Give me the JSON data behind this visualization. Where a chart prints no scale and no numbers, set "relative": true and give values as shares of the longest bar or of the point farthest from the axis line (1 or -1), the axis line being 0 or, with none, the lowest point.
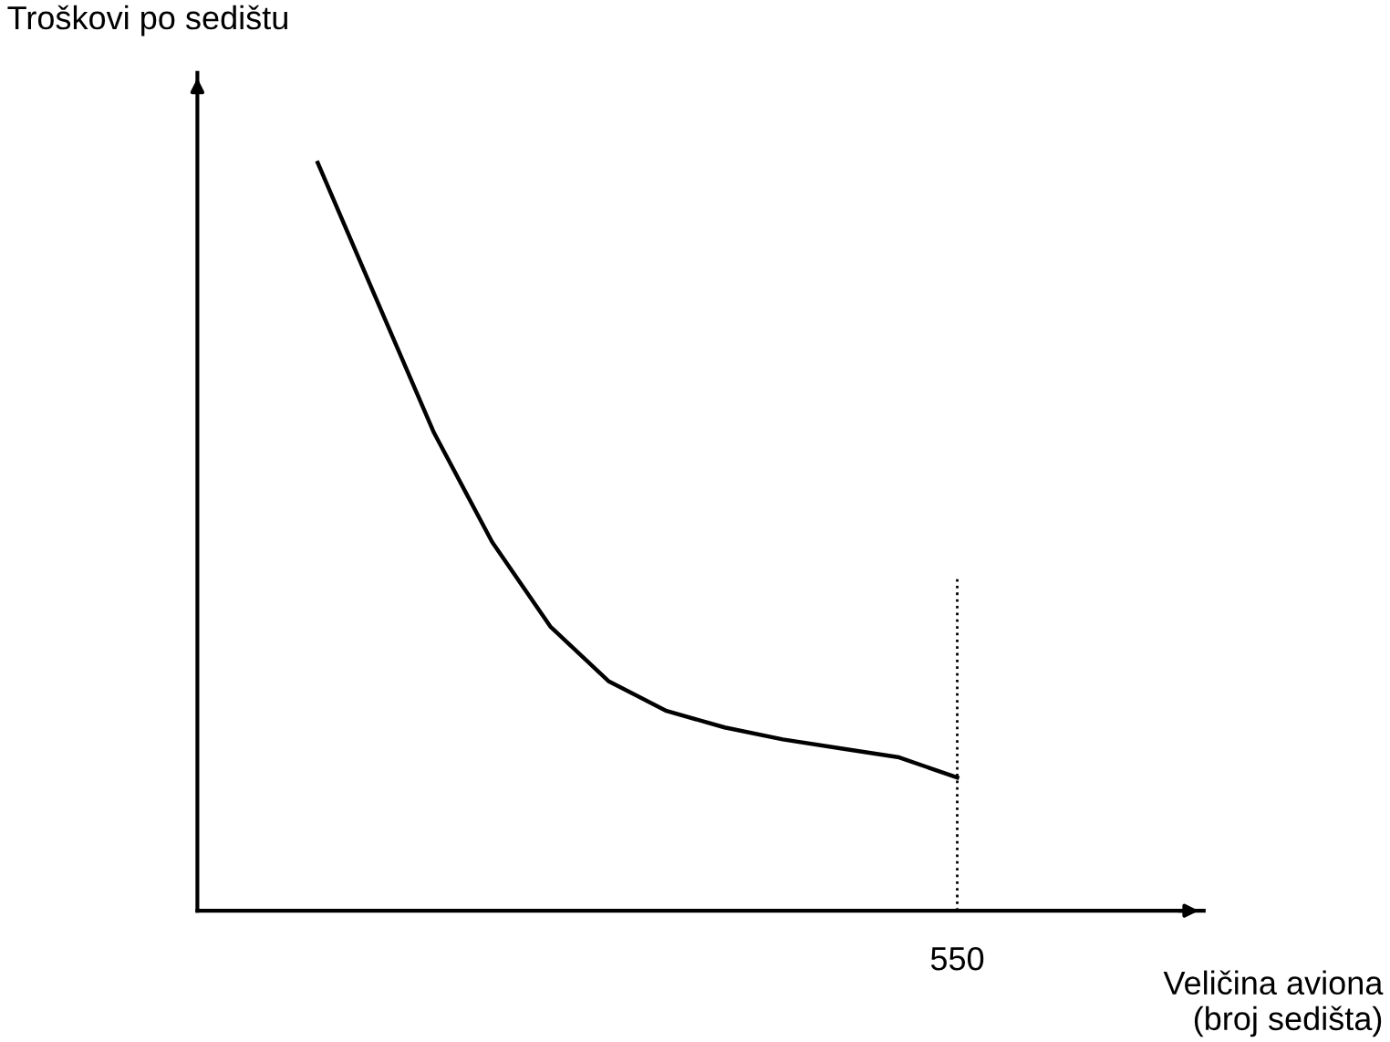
{
  "chart_data": {
    "type": "line",
    "relative": true,
    "ylabel": "Troškovi po sedištu",
    "annotations": [
      "Veličina aviona\n(broj sedišta)"
    ],
    "categories": [
      null,
      null,
      null,
      null,
      null,
      null,
      null,
      null,
      null,
      null,
      null,
      null
    ],
    "series": [
      {
        "color": "#000000",
        "values": [
          1.0,
          0.819,
          0.639,
          0.493,
          0.38,
          0.307,
          0.267,
          0.245,
          0.229,
          0.217,
          0.205,
          0.178
        ]
      }
    ],
    "ref_lines": [
      {
        "axis": "x",
        "label": "550",
        "line_style": "dotted",
        "color": "#000000"
      }
    ],
    "marker": "none",
    "line_style": "solid",
    "grid": false,
    "legend": false
  }
}
